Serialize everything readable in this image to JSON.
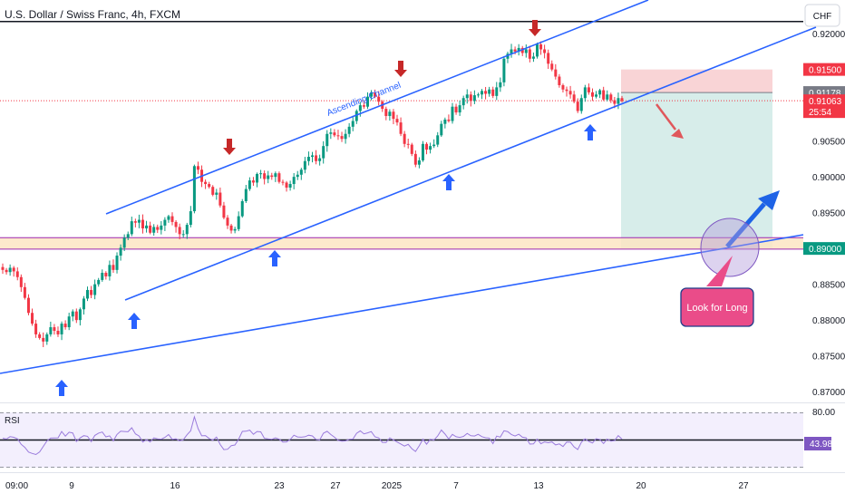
{
  "chart_data": {
    "type": "candlestick",
    "title": "U.S. Dollar / Swiss Franc, 4h, FXCM",
    "currency": "CHF",
    "y_ticks": [
      "0.92000",
      "0.90500",
      "0.90000",
      "0.89500",
      "0.88500",
      "0.88000",
      "0.87500",
      "0.87000"
    ],
    "ylim": [
      0.8685,
      0.9247
    ],
    "x_ticks": [
      "09:00",
      "9",
      "16",
      "23",
      "27",
      "2025",
      "7",
      "13",
      "20",
      "27"
    ],
    "price_labels": [
      {
        "value": 0.915,
        "text": "0.91500",
        "color": "#f23645"
      },
      {
        "value": 0.91178,
        "text": "0.91178",
        "color": "#787b86"
      },
      {
        "value": 0.91063,
        "text": "0.91063",
        "color": "#f23645",
        "sub": "25:54"
      },
      {
        "value": 0.89,
        "text": "0.89000",
        "color": "#089981"
      }
    ],
    "support_zone": [
      0.8899,
      0.8915
    ],
    "resistance_level": 0.9217,
    "channel_label": "Ascending Channel",
    "annotation": "Look for Long",
    "position": {
      "entry": 0.91178,
      "stop": 0.915,
      "target": 0.89
    },
    "close_series": [
      0.887,
      0.8867,
      0.8873,
      0.8868,
      0.886,
      0.8846,
      0.8831,
      0.881,
      0.8795,
      0.878,
      0.8775,
      0.877,
      0.878,
      0.879,
      0.8785,
      0.878,
      0.8795,
      0.879,
      0.8805,
      0.8812,
      0.88,
      0.8815,
      0.883,
      0.8842,
      0.8835,
      0.885,
      0.8856,
      0.8866,
      0.8861,
      0.8877,
      0.887,
      0.889,
      0.8901,
      0.8915,
      0.892,
      0.8938,
      0.8936,
      0.894,
      0.8928,
      0.8932,
      0.8922,
      0.893,
      0.8926,
      0.8932,
      0.894,
      0.8945,
      0.8937,
      0.893,
      0.892,
      0.892,
      0.8933,
      0.8952,
      0.9015,
      0.901,
      0.8993,
      0.899,
      0.8986,
      0.8975,
      0.8978,
      0.896,
      0.8943,
      0.8932,
      0.8925,
      0.8927,
      0.8945,
      0.8966,
      0.8983,
      0.8995,
      0.8992,
      0.9004,
      0.9005,
      0.8997,
      0.9002,
      0.9,
      0.9005,
      0.8993,
      0.8992,
      0.8985,
      0.899,
      0.9,
      0.9003,
      0.901,
      0.9022,
      0.9028,
      0.903,
      0.9022,
      0.9026,
      0.9043,
      0.906,
      0.9062,
      0.9058,
      0.9057,
      0.9053,
      0.906,
      0.907,
      0.9078,
      0.9092,
      0.91,
      0.9098,
      0.9112,
      0.9118,
      0.9112,
      0.9105,
      0.9095,
      0.9085,
      0.9091,
      0.9081,
      0.9076,
      0.906,
      0.9046,
      0.9045,
      0.9032,
      0.9017,
      0.9023,
      0.9046,
      0.9038,
      0.9043,
      0.9045,
      0.9058,
      0.9074,
      0.908,
      0.9078,
      0.9098,
      0.909,
      0.91,
      0.911,
      0.9115,
      0.9106,
      0.9114,
      0.9115,
      0.912,
      0.9116,
      0.9122,
      0.9113,
      0.9125,
      0.9132,
      0.9165,
      0.9172,
      0.9178,
      0.9175,
      0.918,
      0.9173,
      0.9178,
      0.9165,
      0.9168,
      0.9185,
      0.9178,
      0.9173,
      0.9158,
      0.915,
      0.914,
      0.9128,
      0.9122,
      0.912,
      0.9115,
      0.9105,
      0.9092,
      0.911,
      0.9125,
      0.9118,
      0.9112,
      0.9115,
      0.9121,
      0.9108,
      0.9115,
      0.9107,
      0.9102,
      0.911,
      0.9106
    ]
  }
}
